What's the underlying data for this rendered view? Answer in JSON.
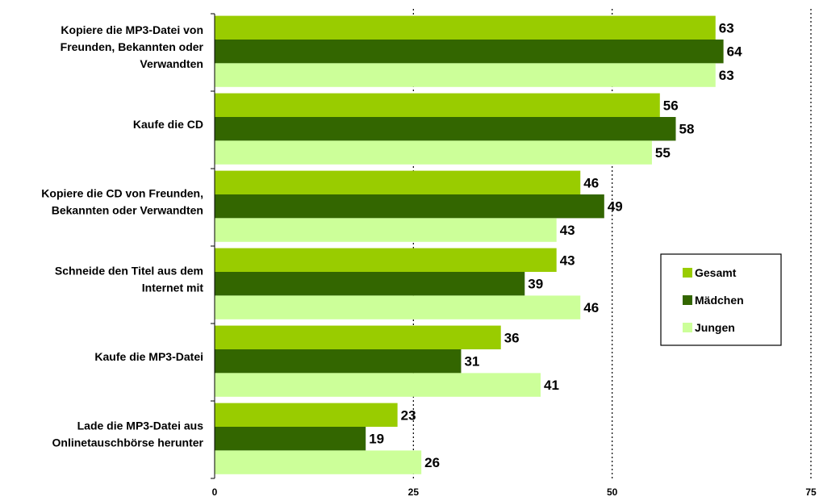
{
  "chart_data": {
    "type": "bar",
    "orientation": "horizontal",
    "categories": [
      [
        "Kopiere die MP3-Datei von",
        "Freunden, Bekannten oder",
        "Verwandten"
      ],
      [
        "Kaufe die CD"
      ],
      [
        "Kopiere die CD von Freunden,",
        "Bekannten oder Verwandten"
      ],
      [
        "Schneide den Titel aus dem",
        "Internet mit"
      ],
      [
        "Kaufe die MP3-Datei"
      ],
      [
        "Lade die MP3-Datei aus",
        "Onlinetauschbörse herunter"
      ]
    ],
    "series": [
      {
        "name": "Gesamt",
        "color": "#99cc00",
        "values": [
          63,
          56,
          46,
          43,
          36,
          23
        ]
      },
      {
        "name": "Mädchen",
        "color": "#336600",
        "values": [
          64,
          58,
          49,
          39,
          31,
          19
        ]
      },
      {
        "name": "Jungen",
        "color": "#ccff99",
        "values": [
          63,
          55,
          43,
          46,
          41,
          26
        ]
      }
    ],
    "xlim": [
      0,
      75
    ],
    "xticks": [
      "0",
      "25",
      "50",
      "75"
    ],
    "grid": "vertical dotted",
    "legend_position": "right"
  }
}
